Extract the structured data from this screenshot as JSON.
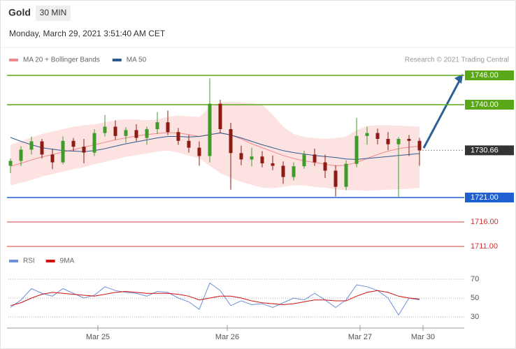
{
  "header": {
    "title": "Gold",
    "interval": "30 MIN",
    "timestamp": "Monday, March 29, 2021 3:51:40 AM CET",
    "credit": "Research © 2021 Trading Central"
  },
  "chart_data": [
    {
      "type": "candlestick",
      "ylim": [
        1710,
        1748
      ],
      "up_color": "#3f9b2a",
      "down_color": "#8c1c13",
      "open": [
        1727.5,
        1728.5,
        1730.8,
        1732.5,
        1729.8,
        1728.2,
        1732.6,
        1731.4,
        1730.2,
        1734.2,
        1735.5,
        1733.6,
        1734.8,
        1733.2,
        1735,
        1736.4,
        1734.4,
        1732.6,
        1731.2,
        1729.5,
        1740.2,
        1735,
        1730.1,
        1728.8,
        1729.4,
        1728.0,
        1727.5,
        1725.2,
        1727.4,
        1729.8,
        1728.2,
        1726.5,
        1723.2,
        1727.9,
        1733.6,
        1734.2,
        1733.0,
        1731.9,
        1733.0,
        1732.6
      ],
      "high": [
        1729,
        1731.5,
        1733.5,
        1733,
        1731,
        1733.5,
        1733.2,
        1733,
        1735,
        1737.9,
        1736.8,
        1735.4,
        1736,
        1735.5,
        1738.5,
        1738.8,
        1735.2,
        1733.8,
        1732.5,
        1745.4,
        1741,
        1736.3,
        1731.6,
        1731.2,
        1730.5,
        1729.6,
        1728.4,
        1728.2,
        1730.6,
        1731,
        1729.8,
        1727.6,
        1728.6,
        1737.3,
        1735.5,
        1735.1,
        1734.4,
        1733.4,
        1733.8,
        1733.2
      ],
      "low": [
        1726,
        1727.5,
        1729.8,
        1729,
        1726.8,
        1727.8,
        1730.5,
        1728,
        1729.5,
        1733.5,
        1732.8,
        1732.2,
        1732.5,
        1731.8,
        1734,
        1733.8,
        1731.8,
        1730.2,
        1727.5,
        1728.2,
        1734.2,
        1722.6,
        1727.6,
        1727.4,
        1727.2,
        1726.6,
        1723.8,
        1724.5,
        1726.9,
        1727.5,
        1725,
        1721.2,
        1722.5,
        1727.2,
        1731.8,
        1731.9,
        1730.7,
        1721.0,
        1729.5,
        1727.5
      ],
      "close": [
        1728.5,
        1730.8,
        1732.5,
        1729.8,
        1728.2,
        1732.6,
        1731.4,
        1730.2,
        1734.2,
        1735.5,
        1733.6,
        1734.8,
        1733.2,
        1735,
        1736.4,
        1734.4,
        1732.6,
        1731.2,
        1729.5,
        1740.2,
        1735,
        1730.1,
        1728.8,
        1729.4,
        1728.0,
        1727.5,
        1725.2,
        1727.4,
        1729.8,
        1728.2,
        1726.5,
        1723.2,
        1727.9,
        1733.6,
        1734.2,
        1733.0,
        1731.9,
        1733.0,
        1732.6,
        1730.66
      ],
      "series": [
        {
          "name": "MA 20 + Bollinger Bands",
          "color": "#f08a8a",
          "band_color": "#fde2e2",
          "values": [
            1727.4,
            1728.0,
            1728.7,
            1729.3,
            1729.8,
            1730.3,
            1730.8,
            1731.3,
            1731.8,
            1732.3,
            1732.8,
            1733.2,
            1733.6,
            1733.9,
            1734.1,
            1734.3,
            1734.2,
            1733.9,
            1733.5,
            1733.8,
            1734.3,
            1733.8,
            1733.0,
            1732.0,
            1731.2,
            1730.4,
            1729.6,
            1729.0,
            1728.5,
            1728.2,
            1727.8,
            1727.5,
            1727.6,
            1728.2,
            1729.0,
            1729.8,
            1730.5,
            1731.0,
            1731.3,
            1731.5
          ],
          "band_upper": [
            1731.8,
            1732.5,
            1733.3,
            1734.0,
            1734.5,
            1735.0,
            1735.5,
            1735.8,
            1736.0,
            1736.4,
            1736.8,
            1737.0,
            1737.0,
            1736.8,
            1737.0,
            1737.5,
            1737.8,
            1737.6,
            1737.5,
            1739.5,
            1740.5,
            1740.6,
            1740.5,
            1740.3,
            1740.0,
            1738.0,
            1735.5,
            1734.0,
            1733.4,
            1733.2,
            1733.0,
            1733.2,
            1733.5,
            1734.8,
            1735.6,
            1735.8,
            1735.8,
            1735.7,
            1735.6,
            1735.5
          ],
          "band_lower": [
            1723.5,
            1724.0,
            1724.6,
            1725.3,
            1725.8,
            1726.3,
            1726.8,
            1727.2,
            1727.8,
            1728.3,
            1728.8,
            1729.3,
            1729.7,
            1730.0,
            1730.4,
            1730.6,
            1730.2,
            1729.6,
            1729.0,
            1727.5,
            1726.0,
            1725.0,
            1724.2,
            1723.6,
            1723.0,
            1722.9,
            1723.2,
            1723.5,
            1723.5,
            1723.2,
            1723.0,
            1722.7,
            1722.5,
            1722.5,
            1722.4,
            1722.5,
            1722.6,
            1722.7,
            1722.8,
            1723.0
          ]
        },
        {
          "name": "MA 50",
          "color": "#2e5b8e",
          "values": [
            1733.3,
            1732.5,
            1731.8,
            1731.2,
            1730.9,
            1730.6,
            1730.5,
            1730.4,
            1730.6,
            1731.0,
            1731.5,
            1732.0,
            1732.4,
            1732.8,
            1733.2,
            1733.5,
            1733.5,
            1733.4,
            1733.5,
            1733.9,
            1734.2,
            1733.8,
            1733.2,
            1732.5,
            1731.8,
            1731.2,
            1730.6,
            1730.2,
            1729.9,
            1729.6,
            1729.4,
            1729.2,
            1728.9,
            1728.8,
            1729.0,
            1729.2,
            1729.4,
            1729.6,
            1729.8,
            1730.0
          ]
        }
      ],
      "levels": [
        {
          "value": 1746,
          "label": "1746.00",
          "color": "#5aa817",
          "box": true,
          "style": "solid"
        },
        {
          "value": 1740,
          "label": "1740.00",
          "color": "#5aa817",
          "box": true,
          "style": "solid"
        },
        {
          "value": 1730.66,
          "color": "#333333",
          "box": true,
          "style": "dotted"
        },
        {
          "value": 1721,
          "label": "1721.00",
          "color": "#1f5fcf",
          "box": true,
          "style": "solid"
        },
        {
          "value": 1716,
          "label": "1716.00",
          "color": "#e08080",
          "box": false,
          "style": "solid"
        },
        {
          "value": 1711,
          "label": "1711.00",
          "color": "#e08080",
          "box": false,
          "style": "solid"
        }
      ],
      "xticks": [
        {
          "value": 8.33,
          "label": "Mar 25"
        },
        {
          "value": 20.67,
          "label": "Mar 26"
        },
        {
          "value": 33.33,
          "label": "Mar 27"
        },
        {
          "value": 39.33,
          "label": "Mar 30"
        }
      ]
    },
    {
      "type": "line",
      "ylim": [
        20,
        80
      ],
      "yticks": [
        70,
        50,
        30
      ],
      "grid": true,
      "series": [
        {
          "name": "RSI",
          "color": "#6f8fd8",
          "values": [
            40,
            48,
            60,
            55,
            52,
            60,
            55,
            50,
            53,
            62,
            58,
            56,
            55,
            52,
            57,
            56,
            50,
            46,
            38,
            66,
            58,
            42,
            47,
            43,
            44,
            40,
            45,
            50,
            48,
            55,
            48,
            40,
            48,
            64,
            62,
            58,
            50,
            32,
            50,
            48
          ]
        },
        {
          "name": "9MA",
          "color": "#cc1111",
          "values": [
            42,
            45,
            50,
            54,
            56,
            55,
            54,
            53,
            52,
            54,
            56,
            57,
            56,
            55,
            55,
            55,
            54,
            52,
            48,
            50,
            52,
            52,
            50,
            47,
            45,
            44,
            43,
            44,
            46,
            48,
            48,
            47,
            47,
            52,
            56,
            58,
            56,
            52,
            50,
            49
          ]
        }
      ]
    }
  ]
}
